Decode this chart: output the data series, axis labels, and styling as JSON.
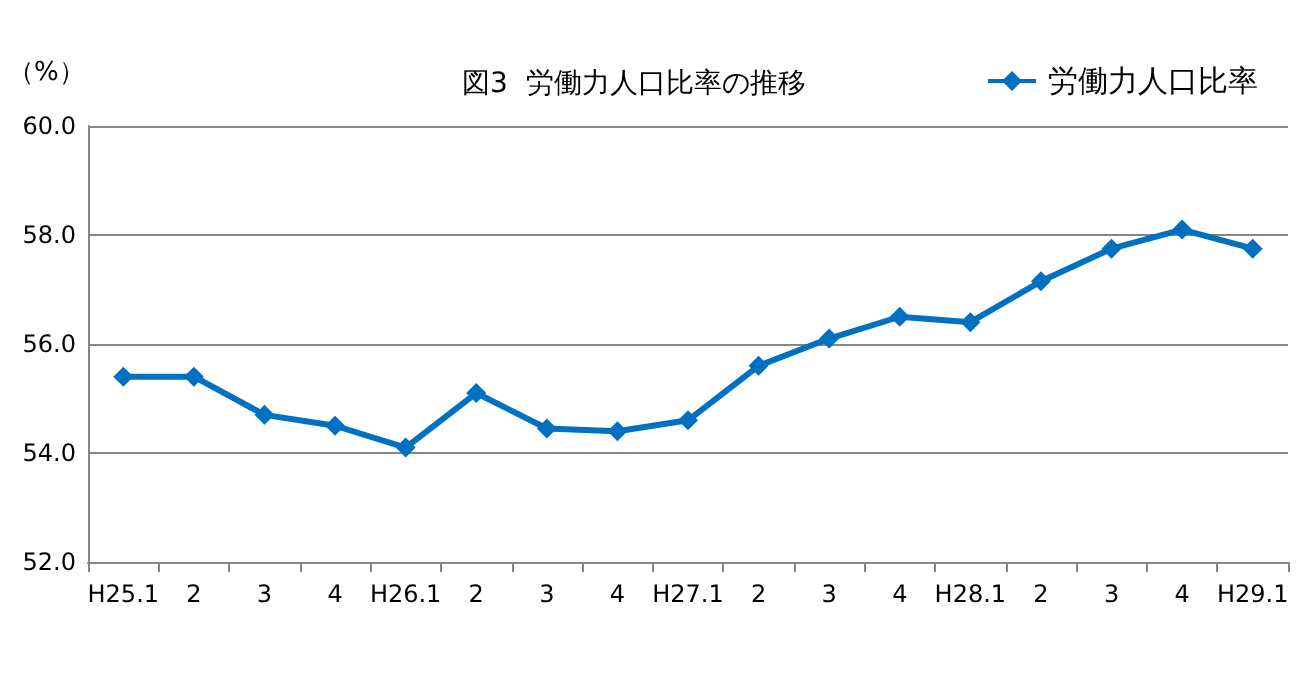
{
  "chart_data": {
    "type": "line",
    "title": "図3  労働力人口比率の推移",
    "ylabel": "（%）",
    "categories": [
      "H25.1",
      "2",
      "3",
      "4",
      "H26.1",
      "2",
      "3",
      "4",
      "H27.1",
      "2",
      "3",
      "4",
      "H28.1",
      "2",
      "3",
      "4",
      "H29.1"
    ],
    "series": [
      {
        "name": "労働力人口比率",
        "color": "#0070c0",
        "values": [
          55.4,
          55.4,
          54.7,
          54.5,
          54.1,
          55.1,
          54.45,
          54.4,
          54.6,
          55.6,
          56.1,
          56.5,
          56.4,
          57.15,
          57.75,
          58.1,
          57.75
        ]
      }
    ],
    "ylim": [
      52,
      60
    ],
    "yticks": [
      {
        "value": 52,
        "label": "52.0"
      },
      {
        "value": 54,
        "label": "54.0"
      },
      {
        "value": 56,
        "label": "56.0"
      },
      {
        "value": 58,
        "label": "58.0"
      },
      {
        "value": 60,
        "label": "60.0"
      }
    ],
    "grid": "y",
    "legend": "top right",
    "marker": "diamond",
    "line_style": "solid"
  }
}
